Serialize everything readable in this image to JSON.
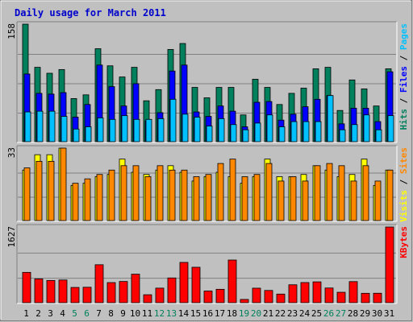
{
  "chart_data": [
    {
      "type": "bar",
      "title": "Daily usage for March 2011",
      "categories": [
        "1",
        "2",
        "3",
        "4",
        "5",
        "6",
        "7",
        "8",
        "9",
        "10",
        "11",
        "12",
        "13",
        "14",
        "15",
        "16",
        "17",
        "18",
        "19",
        "20",
        "21",
        "22",
        "23",
        "24",
        "25",
        "26",
        "27",
        "28",
        "29",
        "30",
        "31"
      ],
      "weekend_days": [
        "5",
        "6",
        "12",
        "13",
        "19",
        "20",
        "26",
        "27"
      ],
      "panels": [
        {
          "name": "pages-files-hits",
          "ymax_label": "158",
          "ymax": 158,
          "series_labels": [
            "Pages",
            "/",
            "Files",
            "/",
            "Hits"
          ],
          "series": [
            {
              "name": "Hits",
              "values": [
                158,
                100,
                92,
                97,
                58,
                63,
                125,
                102,
                87,
                100,
                55,
                70,
                124,
                132,
                73,
                59,
                73,
                73,
                36,
                84,
                73,
                50,
                65,
                72,
                98,
                100,
                42,
                83,
                71,
                48,
                98
              ]
            },
            {
              "name": "Files",
              "values": [
                91,
                65,
                64,
                66,
                33,
                50,
                103,
                74,
                48,
                78,
                28,
                39,
                95,
                103,
                40,
                34,
                48,
                41,
                20,
                53,
                54,
                29,
                37,
                47,
                57,
                62,
                24,
                45,
                45,
                27,
                94
              ]
            },
            {
              "name": "Pages",
              "values": [
                40,
                41,
                41,
                34,
                17,
                20,
                32,
                30,
                35,
                30,
                30,
                31,
                57,
                37,
                33,
                21,
                31,
                23,
                16,
                25,
                36,
                20,
                27,
                27,
                27,
                62,
                16,
                23,
                36,
                16,
                35
              ]
            }
          ]
        },
        {
          "name": "sites-visits",
          "ymax_label": "33",
          "ymax": 33,
          "series_labels": [
            "Sites",
            "/",
            "Visits"
          ],
          "series": [
            {
              "name": "Visits",
              "values": [
                23,
                30,
                30,
                33,
                16,
                17,
                20,
                21,
                28,
                22,
                21,
                23,
                25,
                22,
                18,
                20,
                22,
                20,
                17,
                20,
                28,
                20,
                20,
                21,
                25,
                23,
                20,
                21,
                28,
                16,
                23
              ]
            },
            {
              "name": "Sites",
              "values": [
                24,
                27,
                27,
                35,
                17,
                19,
                21,
                23,
                25,
                25,
                20,
                25,
                23,
                23,
                20,
                21,
                26,
                28,
                20,
                21,
                26,
                18,
                20,
                18,
                25,
                26,
                25,
                18,
                25,
                18,
                23
              ]
            }
          ]
        },
        {
          "name": "kbytes",
          "ymax_label": "1627",
          "ymax": 1627,
          "series_labels": [
            "KBytes"
          ],
          "series": [
            {
              "name": "KBytes",
              "values": [
                652,
                511,
                478,
                488,
                328,
                332,
                816,
                432,
                456,
                613,
                171,
                313,
                532,
                866,
                762,
                251,
                288,
                917,
                70,
                312,
                263,
                185,
                385,
                433,
                448,
                316,
                224,
                453,
                202,
                203,
                1627
              ]
            }
          ]
        }
      ],
      "colors": {
        "title": "#0000cc",
        "hits": "#00805c",
        "files": "#0000ff",
        "pages": "#00c0ff",
        "visits": "#ffff00",
        "sites": "#ff8800",
        "kbytes": "#ff0000",
        "weekend_label": "#00805c",
        "weekday_label": "#000000",
        "panel_bg": "#c0c0c0",
        "bevel_light": "#ffffff",
        "bevel_dark": "#808080"
      }
    }
  ]
}
